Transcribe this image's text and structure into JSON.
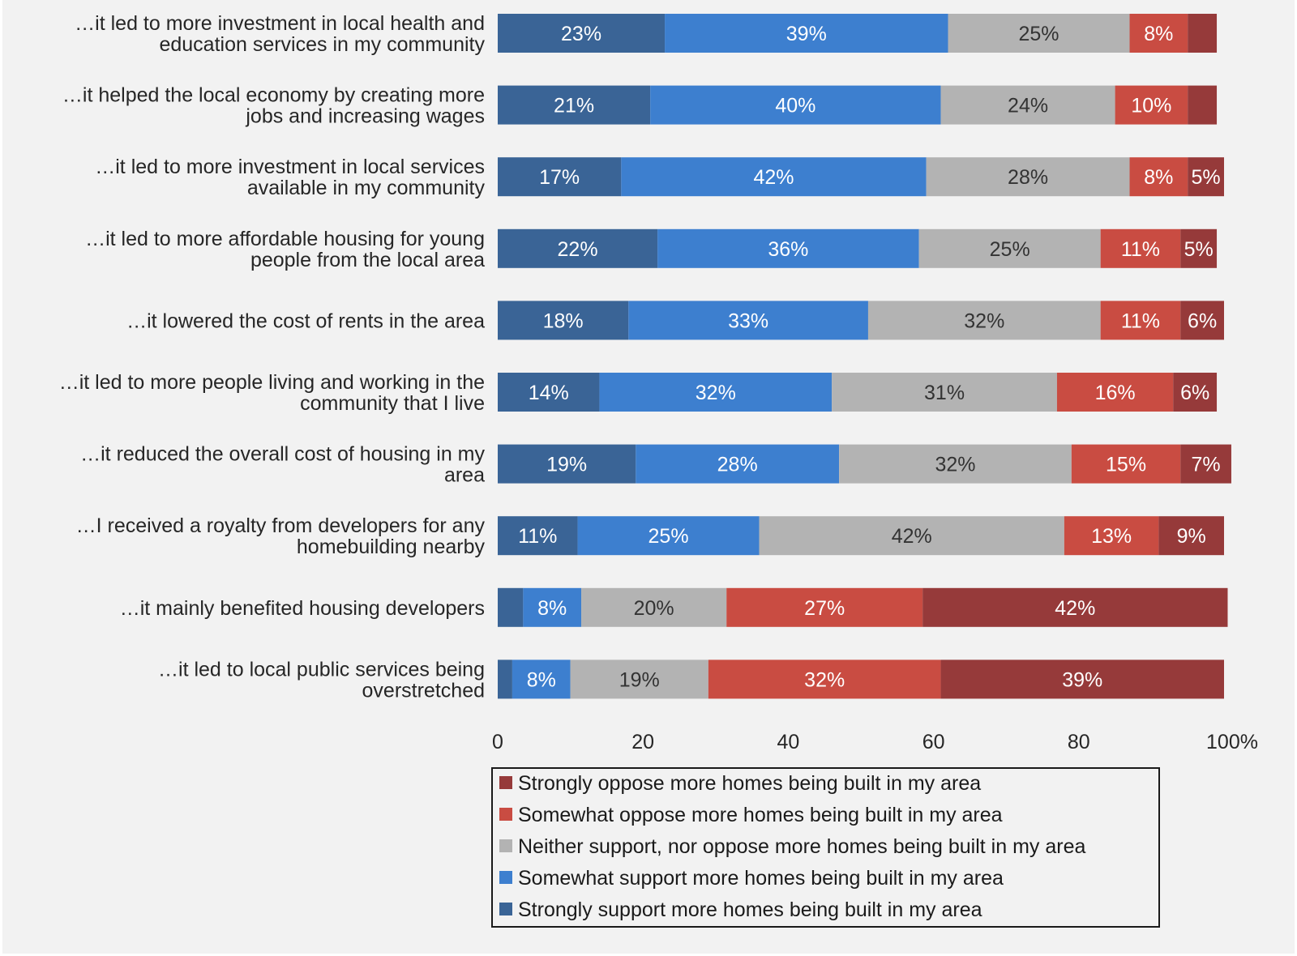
{
  "chart_data": {
    "type": "bar",
    "orientation": "horizontal",
    "stacked": true,
    "categories": [
      [
        "…it led to more investment in local health and",
        "education services in my community"
      ],
      [
        "…it helped the local economy by creating more",
        "jobs and increasing wages"
      ],
      [
        "…it led to more investment in local services",
        "available in my community"
      ],
      [
        "…it led to more affordable housing for young",
        "people from the local area"
      ],
      [
        "…it lowered the cost of rents in the area"
      ],
      [
        "…it led to more people living and working in the",
        "community that I live"
      ],
      [
        "…it reduced the overall cost of housing in my",
        "area"
      ],
      [
        "…I received a royalty from developers for any",
        "homebuilding nearby"
      ],
      [
        "…it mainly benefited housing developers"
      ],
      [
        "…it led to local public services being",
        "overstretched"
      ]
    ],
    "series": [
      {
        "name": "Strongly support more homes being built in my area",
        "color": "#3a6496",
        "text_color": "#ffffff",
        "values": [
          23,
          21,
          17,
          22,
          18,
          14,
          19,
          11,
          3.5,
          2
        ],
        "labels": [
          "23%",
          "21%",
          "17%",
          "22%",
          "18%",
          "14%",
          "19%",
          "11%",
          "",
          ""
        ]
      },
      {
        "name": "Somewhat support more homes being built in my area",
        "color": "#3d7fcf",
        "text_color": "#ffffff",
        "values": [
          39,
          40,
          42,
          36,
          33,
          32,
          28,
          25,
          8,
          8
        ],
        "labels": [
          "39%",
          "40%",
          "42%",
          "36%",
          "33%",
          "32%",
          "28%",
          "25%",
          "8%",
          "8%"
        ]
      },
      {
        "name": "Neither support, nor oppose more homes being built in my area",
        "color": "#b3b3b3",
        "text_color": "#333333",
        "values": [
          25,
          24,
          28,
          25,
          32,
          31,
          32,
          42,
          20,
          19
        ],
        "labels": [
          "25%",
          "24%",
          "28%",
          "25%",
          "32%",
          "31%",
          "32%",
          "42%",
          "20%",
          "19%"
        ]
      },
      {
        "name": "Somewhat oppose more homes being built in my area",
        "color": "#c94c42",
        "text_color": "#ffffff",
        "values": [
          8,
          10,
          8,
          11,
          11,
          16,
          15,
          13,
          27,
          32
        ],
        "labels": [
          "8%",
          "10%",
          "8%",
          "11%",
          "11%",
          "16%",
          "15%",
          "13%",
          "27%",
          "32%"
        ]
      },
      {
        "name": "Strongly oppose more homes being built in my area",
        "color": "#963a3a",
        "text_color": "#ffffff",
        "values": [
          4,
          4,
          5,
          5,
          6,
          6,
          7,
          9,
          42,
          39
        ],
        "labels": [
          "",
          "",
          "5%",
          "5%",
          "6%",
          "6%",
          "7%",
          "9%",
          "42%",
          "39%"
        ]
      }
    ],
    "x_ticks": [
      "0",
      "20",
      "40",
      "60",
      "80",
      "100%"
    ],
    "xlim": [
      0,
      100
    ],
    "legend_order": [
      4,
      3,
      2,
      1,
      0
    ],
    "legend_position": "bottom",
    "grid": false,
    "title": "",
    "xlabel": "",
    "ylabel": ""
  }
}
